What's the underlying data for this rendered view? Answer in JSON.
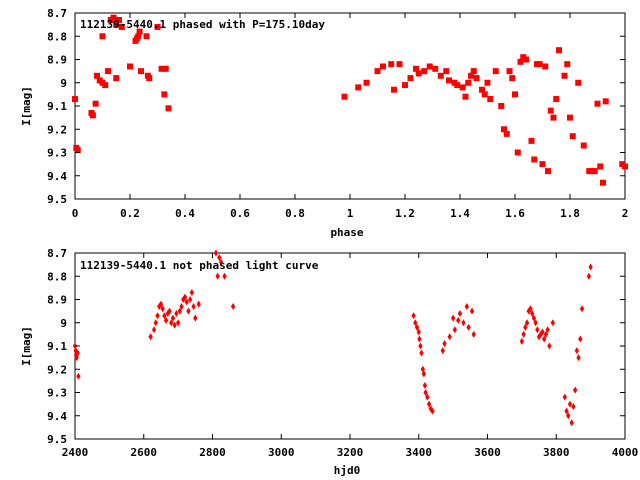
{
  "colors": {
    "points": "#ff0000",
    "axis": "#000000",
    "background": "#ffffff"
  },
  "chart_data": [
    {
      "type": "scatter",
      "title": "112139-5440.1 phased with P=175.10day",
      "xlabel": "phase",
      "ylabel": "I[mag]",
      "xlim": [
        0,
        2
      ],
      "ylim": [
        8.7,
        9.5
      ],
      "y_inverted": true,
      "grid": false,
      "marker": "square",
      "xticks": [
        0,
        0.2,
        0.4,
        0.6,
        0.8,
        1,
        1.2,
        1.4,
        1.6,
        1.8,
        2
      ],
      "xtick_labels": [
        "0",
        "0.2",
        "0.4",
        "0.6",
        "0.8",
        "1",
        "1.2",
        "1.4",
        "1.6",
        "1.8",
        "2"
      ],
      "yticks": [
        8.7,
        8.8,
        8.9,
        9.0,
        9.1,
        9.2,
        9.3,
        9.4,
        9.5
      ],
      "ytick_labels": [
        "8.7",
        "8.8",
        "8.9",
        "9",
        "9.1",
        "9.2",
        "9.3",
        "9.4",
        "9.5"
      ],
      "points": [
        [
          0.0,
          9.07
        ],
        [
          0.005,
          9.28
        ],
        [
          0.01,
          9.29
        ],
        [
          0.06,
          9.13
        ],
        [
          0.065,
          9.14
        ],
        [
          0.075,
          9.09
        ],
        [
          0.08,
          8.97
        ],
        [
          0.09,
          8.99
        ],
        [
          0.1,
          9.0
        ],
        [
          0.11,
          9.01
        ],
        [
          0.1,
          8.8
        ],
        [
          0.12,
          8.95
        ],
        [
          0.13,
          8.73
        ],
        [
          0.14,
          8.72
        ],
        [
          0.15,
          8.75
        ],
        [
          0.16,
          8.73
        ],
        [
          0.17,
          8.76
        ],
        [
          0.15,
          8.98
        ],
        [
          0.2,
          8.93
        ],
        [
          0.22,
          8.82
        ],
        [
          0.225,
          8.81
        ],
        [
          0.23,
          8.8
        ],
        [
          0.235,
          8.78
        ],
        [
          0.24,
          8.95
        ],
        [
          0.26,
          8.8
        ],
        [
          0.265,
          8.97
        ],
        [
          0.27,
          8.98
        ],
        [
          0.3,
          8.76
        ],
        [
          0.315,
          8.94
        ],
        [
          0.325,
          9.05
        ],
        [
          0.33,
          8.94
        ],
        [
          0.34,
          9.11
        ],
        [
          0.98,
          9.06
        ],
        [
          1.03,
          9.02
        ],
        [
          1.06,
          9.0
        ],
        [
          1.1,
          8.95
        ],
        [
          1.12,
          8.93
        ],
        [
          1.15,
          8.92
        ],
        [
          1.16,
          9.03
        ],
        [
          1.18,
          8.92
        ],
        [
          1.2,
          9.01
        ],
        [
          1.22,
          8.98
        ],
        [
          1.24,
          8.94
        ],
        [
          1.25,
          8.96
        ],
        [
          1.27,
          8.95
        ],
        [
          1.29,
          8.93
        ],
        [
          1.31,
          8.94
        ],
        [
          1.33,
          8.97
        ],
        [
          1.35,
          8.95
        ],
        [
          1.36,
          8.99
        ],
        [
          1.38,
          9.0
        ],
        [
          1.39,
          9.01
        ],
        [
          1.41,
          9.02
        ],
        [
          1.42,
          9.06
        ],
        [
          1.43,
          9.0
        ],
        [
          1.44,
          8.97
        ],
        [
          1.45,
          8.95
        ],
        [
          1.46,
          8.98
        ],
        [
          1.48,
          9.03
        ],
        [
          1.49,
          9.05
        ],
        [
          1.5,
          9.0
        ],
        [
          1.51,
          9.07
        ],
        [
          1.53,
          8.95
        ],
        [
          1.55,
          9.1
        ],
        [
          1.56,
          9.2
        ],
        [
          1.57,
          9.22
        ],
        [
          1.58,
          8.95
        ],
        [
          1.59,
          8.98
        ],
        [
          1.6,
          9.05
        ],
        [
          1.61,
          9.3
        ],
        [
          1.62,
          8.91
        ],
        [
          1.63,
          8.89
        ],
        [
          1.64,
          8.9
        ],
        [
          1.66,
          9.25
        ],
        [
          1.67,
          9.33
        ],
        [
          1.68,
          8.92
        ],
        [
          1.69,
          8.92
        ],
        [
          1.7,
          9.35
        ],
        [
          1.71,
          8.93
        ],
        [
          1.72,
          9.38
        ],
        [
          1.73,
          9.12
        ],
        [
          1.74,
          9.15
        ],
        [
          1.75,
          9.07
        ],
        [
          1.76,
          8.86
        ],
        [
          1.78,
          8.97
        ],
        [
          1.79,
          8.92
        ],
        [
          1.8,
          9.15
        ],
        [
          1.81,
          9.23
        ],
        [
          1.83,
          9.0
        ],
        [
          1.85,
          9.27
        ],
        [
          1.87,
          9.38
        ],
        [
          1.88,
          9.38
        ],
        [
          1.89,
          9.38
        ],
        [
          1.9,
          9.09
        ],
        [
          1.91,
          9.36
        ],
        [
          1.92,
          9.43
        ],
        [
          1.93,
          9.08
        ],
        [
          1.99,
          9.35
        ],
        [
          2.0,
          9.36
        ]
      ]
    },
    {
      "type": "scatter",
      "title": "112139-5440.1 not phased light curve",
      "xlabel": "hjd0",
      "ylabel": "I[mag]",
      "xlim": [
        2400,
        4000
      ],
      "ylim": [
        8.7,
        9.5
      ],
      "y_inverted": true,
      "grid": false,
      "marker": "diamond",
      "xticks": [
        2400,
        2600,
        2800,
        3000,
        3200,
        3400,
        3600,
        3800,
        4000
      ],
      "xtick_labels": [
        "2400",
        "2600",
        "2800",
        "3000",
        "3200",
        "3400",
        "3600",
        "3800",
        "4000"
      ],
      "yticks": [
        8.7,
        8.8,
        8.9,
        9.0,
        9.1,
        9.2,
        9.3,
        9.4,
        9.5
      ],
      "ytick_labels": [
        "8.7",
        "8.8",
        "8.9",
        "9",
        "9.1",
        "9.2",
        "9.3",
        "9.4",
        "9.5"
      ],
      "points": [
        [
          2400,
          9.1
        ],
        [
          2402,
          9.12
        ],
        [
          2403,
          9.14
        ],
        [
          2405,
          9.15
        ],
        [
          2408,
          9.13
        ],
        [
          2410,
          9.23
        ],
        [
          2620,
          9.06
        ],
        [
          2630,
          9.03
        ],
        [
          2635,
          9.0
        ],
        [
          2640,
          8.97
        ],
        [
          2645,
          8.93
        ],
        [
          2650,
          8.92
        ],
        [
          2655,
          8.94
        ],
        [
          2660,
          8.97
        ],
        [
          2665,
          8.99
        ],
        [
          2670,
          8.96
        ],
        [
          2675,
          8.95
        ],
        [
          2680,
          9.0
        ],
        [
          2685,
          8.98
        ],
        [
          2690,
          9.01
        ],
        [
          2695,
          8.96
        ],
        [
          2700,
          9.0
        ],
        [
          2705,
          8.95
        ],
        [
          2710,
          8.93
        ],
        [
          2715,
          8.9
        ],
        [
          2720,
          8.89
        ],
        [
          2725,
          8.91
        ],
        [
          2730,
          8.95
        ],
        [
          2735,
          8.9
        ],
        [
          2740,
          8.87
        ],
        [
          2745,
          8.93
        ],
        [
          2750,
          8.98
        ],
        [
          2760,
          8.92
        ],
        [
          2810,
          8.7
        ],
        [
          2815,
          8.8
        ],
        [
          2820,
          8.72
        ],
        [
          2825,
          8.74
        ],
        [
          2835,
          8.8
        ],
        [
          2860,
          8.93
        ],
        [
          3385,
          8.97
        ],
        [
          3390,
          9.0
        ],
        [
          3395,
          9.02
        ],
        [
          3400,
          9.04
        ],
        [
          3402,
          9.07
        ],
        [
          3405,
          9.1
        ],
        [
          3408,
          9.13
        ],
        [
          3412,
          9.2
        ],
        [
          3415,
          9.22
        ],
        [
          3418,
          9.27
        ],
        [
          3420,
          9.3
        ],
        [
          3425,
          9.32
        ],
        [
          3430,
          9.35
        ],
        [
          3435,
          9.37
        ],
        [
          3440,
          9.38
        ],
        [
          3470,
          9.12
        ],
        [
          3475,
          9.09
        ],
        [
          3490,
          9.06
        ],
        [
          3500,
          8.98
        ],
        [
          3505,
          9.03
        ],
        [
          3515,
          8.99
        ],
        [
          3520,
          8.96
        ],
        [
          3530,
          9.0
        ],
        [
          3540,
          8.93
        ],
        [
          3545,
          9.02
        ],
        [
          3555,
          8.95
        ],
        [
          3560,
          9.05
        ],
        [
          3700,
          9.08
        ],
        [
          3705,
          9.05
        ],
        [
          3710,
          9.02
        ],
        [
          3715,
          9.0
        ],
        [
          3720,
          8.95
        ],
        [
          3725,
          8.94
        ],
        [
          3730,
          8.96
        ],
        [
          3735,
          8.98
        ],
        [
          3740,
          9.0
        ],
        [
          3745,
          9.03
        ],
        [
          3750,
          9.06
        ],
        [
          3755,
          9.05
        ],
        [
          3760,
          9.04
        ],
        [
          3765,
          9.07
        ],
        [
          3770,
          9.05
        ],
        [
          3775,
          9.03
        ],
        [
          3780,
          9.1
        ],
        [
          3790,
          9.0
        ],
        [
          3825,
          9.32
        ],
        [
          3830,
          9.38
        ],
        [
          3835,
          9.4
        ],
        [
          3840,
          9.35
        ],
        [
          3845,
          9.43
        ],
        [
          3850,
          9.36
        ],
        [
          3855,
          9.29
        ],
        [
          3860,
          9.12
        ],
        [
          3865,
          9.15
        ],
        [
          3870,
          9.07
        ],
        [
          3875,
          8.94
        ],
        [
          3895,
          8.8
        ],
        [
          3900,
          8.76
        ]
      ]
    }
  ]
}
